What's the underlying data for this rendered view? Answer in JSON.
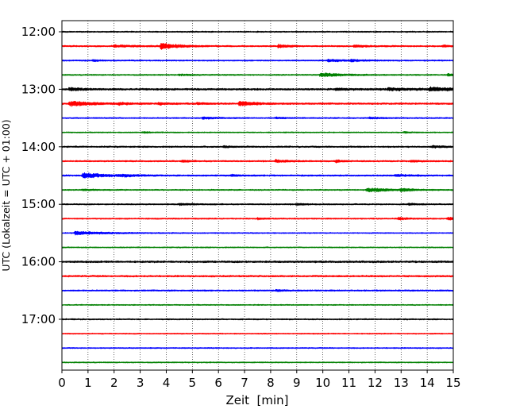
{
  "chart_data": {
    "type": "line",
    "subtype": "helicorder",
    "title": "",
    "xlabel": "Zeit  [min]",
    "ylabel": "UTC (Lokalzeit = UTC + 01:00)",
    "xlim": [
      0,
      15
    ],
    "x_ticks": [
      0,
      1,
      2,
      3,
      4,
      5,
      6,
      7,
      8,
      9,
      10,
      11,
      12,
      13,
      14,
      15
    ],
    "x_grid": true,
    "grid_style": "dotted",
    "y_ticks": [
      {
        "label": "12:00",
        "trace": 0
      },
      {
        "label": "13:00",
        "trace": 4
      },
      {
        "label": "14:00",
        "trace": 8
      },
      {
        "label": "15:00",
        "trace": 12
      },
      {
        "label": "16:00",
        "trace": 16
      },
      {
        "label": "17:00",
        "trace": 20
      }
    ],
    "trace_interval_min": 15,
    "color_cycle": [
      "#000000",
      "#ff0000",
      "#0000ff",
      "#008000"
    ],
    "traces": [
      {
        "start": "12:00",
        "noise": 0.6,
        "events": []
      },
      {
        "start": "12:15",
        "noise": 0.7,
        "events": [
          {
            "t": 3.8,
            "amp": 4.2,
            "dur": 0.6
          },
          {
            "t": 8.3,
            "amp": 2.2,
            "dur": 0.35
          },
          {
            "t": 11.2,
            "amp": 1.5,
            "dur": 0.4
          },
          {
            "t": 14.6,
            "amp": 1.3,
            "dur": 0.3
          },
          {
            "t": 2.0,
            "amp": 1.2,
            "dur": 0.8
          }
        ]
      },
      {
        "start": "12:30",
        "noise": 0.6,
        "events": [
          {
            "t": 1.2,
            "amp": 1.2,
            "dur": 0.3
          },
          {
            "t": 10.2,
            "amp": 1.7,
            "dur": 0.6
          },
          {
            "t": 11.1,
            "amp": 1.3,
            "dur": 0.4
          }
        ]
      },
      {
        "start": "12:45",
        "noise": 0.6,
        "events": [
          {
            "t": 9.9,
            "amp": 2.8,
            "dur": 0.8
          },
          {
            "t": 14.8,
            "amp": 1.5,
            "dur": 0.3
          },
          {
            "t": 4.5,
            "amp": 0.9,
            "dur": 0.5
          }
        ]
      },
      {
        "start": "13:00",
        "noise": 0.9,
        "events": [
          {
            "t": 0.3,
            "amp": 2.2,
            "dur": 0.4
          },
          {
            "t": 14.1,
            "amp": 2.6,
            "dur": 0.8
          },
          {
            "t": 12.5,
            "amp": 1.6,
            "dur": 1.0
          },
          {
            "t": 10.5,
            "amp": 1.2,
            "dur": 0.6
          }
        ]
      },
      {
        "start": "13:15",
        "noise": 0.8,
        "events": [
          {
            "t": 0.3,
            "amp": 3.6,
            "dur": 0.8
          },
          {
            "t": 6.8,
            "amp": 3.2,
            "dur": 0.6
          },
          {
            "t": 2.2,
            "amp": 1.3,
            "dur": 0.4
          },
          {
            "t": 3.7,
            "amp": 1.2,
            "dur": 0.4
          },
          {
            "t": 5.2,
            "amp": 1.2,
            "dur": 0.4
          }
        ]
      },
      {
        "start": "13:30",
        "noise": 0.6,
        "events": [
          {
            "t": 5.4,
            "amp": 1.3,
            "dur": 0.5
          },
          {
            "t": 11.8,
            "amp": 1.2,
            "dur": 0.4
          },
          {
            "t": 8.2,
            "amp": 0.9,
            "dur": 0.4
          }
        ]
      },
      {
        "start": "13:45",
        "noise": 0.5,
        "events": [
          {
            "t": 3.1,
            "amp": 0.9,
            "dur": 0.3
          },
          {
            "t": 13.1,
            "amp": 0.9,
            "dur": 0.3
          }
        ]
      },
      {
        "start": "14:00",
        "noise": 0.7,
        "events": [
          {
            "t": 14.2,
            "amp": 1.4,
            "dur": 0.5
          },
          {
            "t": 6.2,
            "amp": 1.0,
            "dur": 0.4
          }
        ]
      },
      {
        "start": "14:15",
        "noise": 0.7,
        "events": [
          {
            "t": 8.2,
            "amp": 1.8,
            "dur": 0.5
          },
          {
            "t": 10.5,
            "amp": 1.5,
            "dur": 0.3
          },
          {
            "t": 4.6,
            "amp": 1.0,
            "dur": 0.4
          },
          {
            "t": 13.4,
            "amp": 1.1,
            "dur": 0.4
          }
        ]
      },
      {
        "start": "14:30",
        "noise": 0.7,
        "events": [
          {
            "t": 0.8,
            "amp": 3.3,
            "dur": 1.0
          },
          {
            "t": 2.3,
            "amp": 1.2,
            "dur": 0.4
          },
          {
            "t": 6.5,
            "amp": 1.0,
            "dur": 0.4
          },
          {
            "t": 12.8,
            "amp": 1.4,
            "dur": 0.5
          }
        ]
      },
      {
        "start": "14:45",
        "noise": 0.6,
        "events": [
          {
            "t": 11.7,
            "amp": 2.8,
            "dur": 0.8
          },
          {
            "t": 13.0,
            "amp": 1.5,
            "dur": 0.5
          },
          {
            "t": 0.8,
            "amp": 1.0,
            "dur": 0.4
          }
        ]
      },
      {
        "start": "15:00",
        "noise": 0.6,
        "events": [
          {
            "t": 4.5,
            "amp": 1.2,
            "dur": 0.5
          },
          {
            "t": 9.0,
            "amp": 1.1,
            "dur": 0.4
          },
          {
            "t": 13.3,
            "amp": 1.1,
            "dur": 0.4
          }
        ]
      },
      {
        "start": "15:15",
        "noise": 0.6,
        "events": [
          {
            "t": 14.8,
            "amp": 1.9,
            "dur": 0.4
          },
          {
            "t": 12.9,
            "amp": 1.4,
            "dur": 0.4
          },
          {
            "t": 7.5,
            "amp": 1.0,
            "dur": 0.3
          }
        ]
      },
      {
        "start": "15:30",
        "noise": 0.5,
        "events": [
          {
            "t": 0.5,
            "amp": 2.4,
            "dur": 1.1
          }
        ]
      },
      {
        "start": "15:45",
        "noise": 0.5,
        "events": []
      },
      {
        "start": "16:00",
        "noise": 0.9,
        "events": []
      },
      {
        "start": "16:15",
        "noise": 0.8,
        "events": []
      },
      {
        "start": "16:30",
        "noise": 0.7,
        "events": [
          {
            "t": 8.2,
            "amp": 1.2,
            "dur": 0.3
          }
        ]
      },
      {
        "start": "16:45",
        "noise": 0.5,
        "events": []
      },
      {
        "start": "17:00",
        "noise": 0.6,
        "events": []
      },
      {
        "start": "17:15",
        "noise": 0.5,
        "events": []
      },
      {
        "start": "17:30",
        "noise": 0.5,
        "events": []
      },
      {
        "start": "17:45",
        "noise": 0.5,
        "events": []
      }
    ]
  }
}
